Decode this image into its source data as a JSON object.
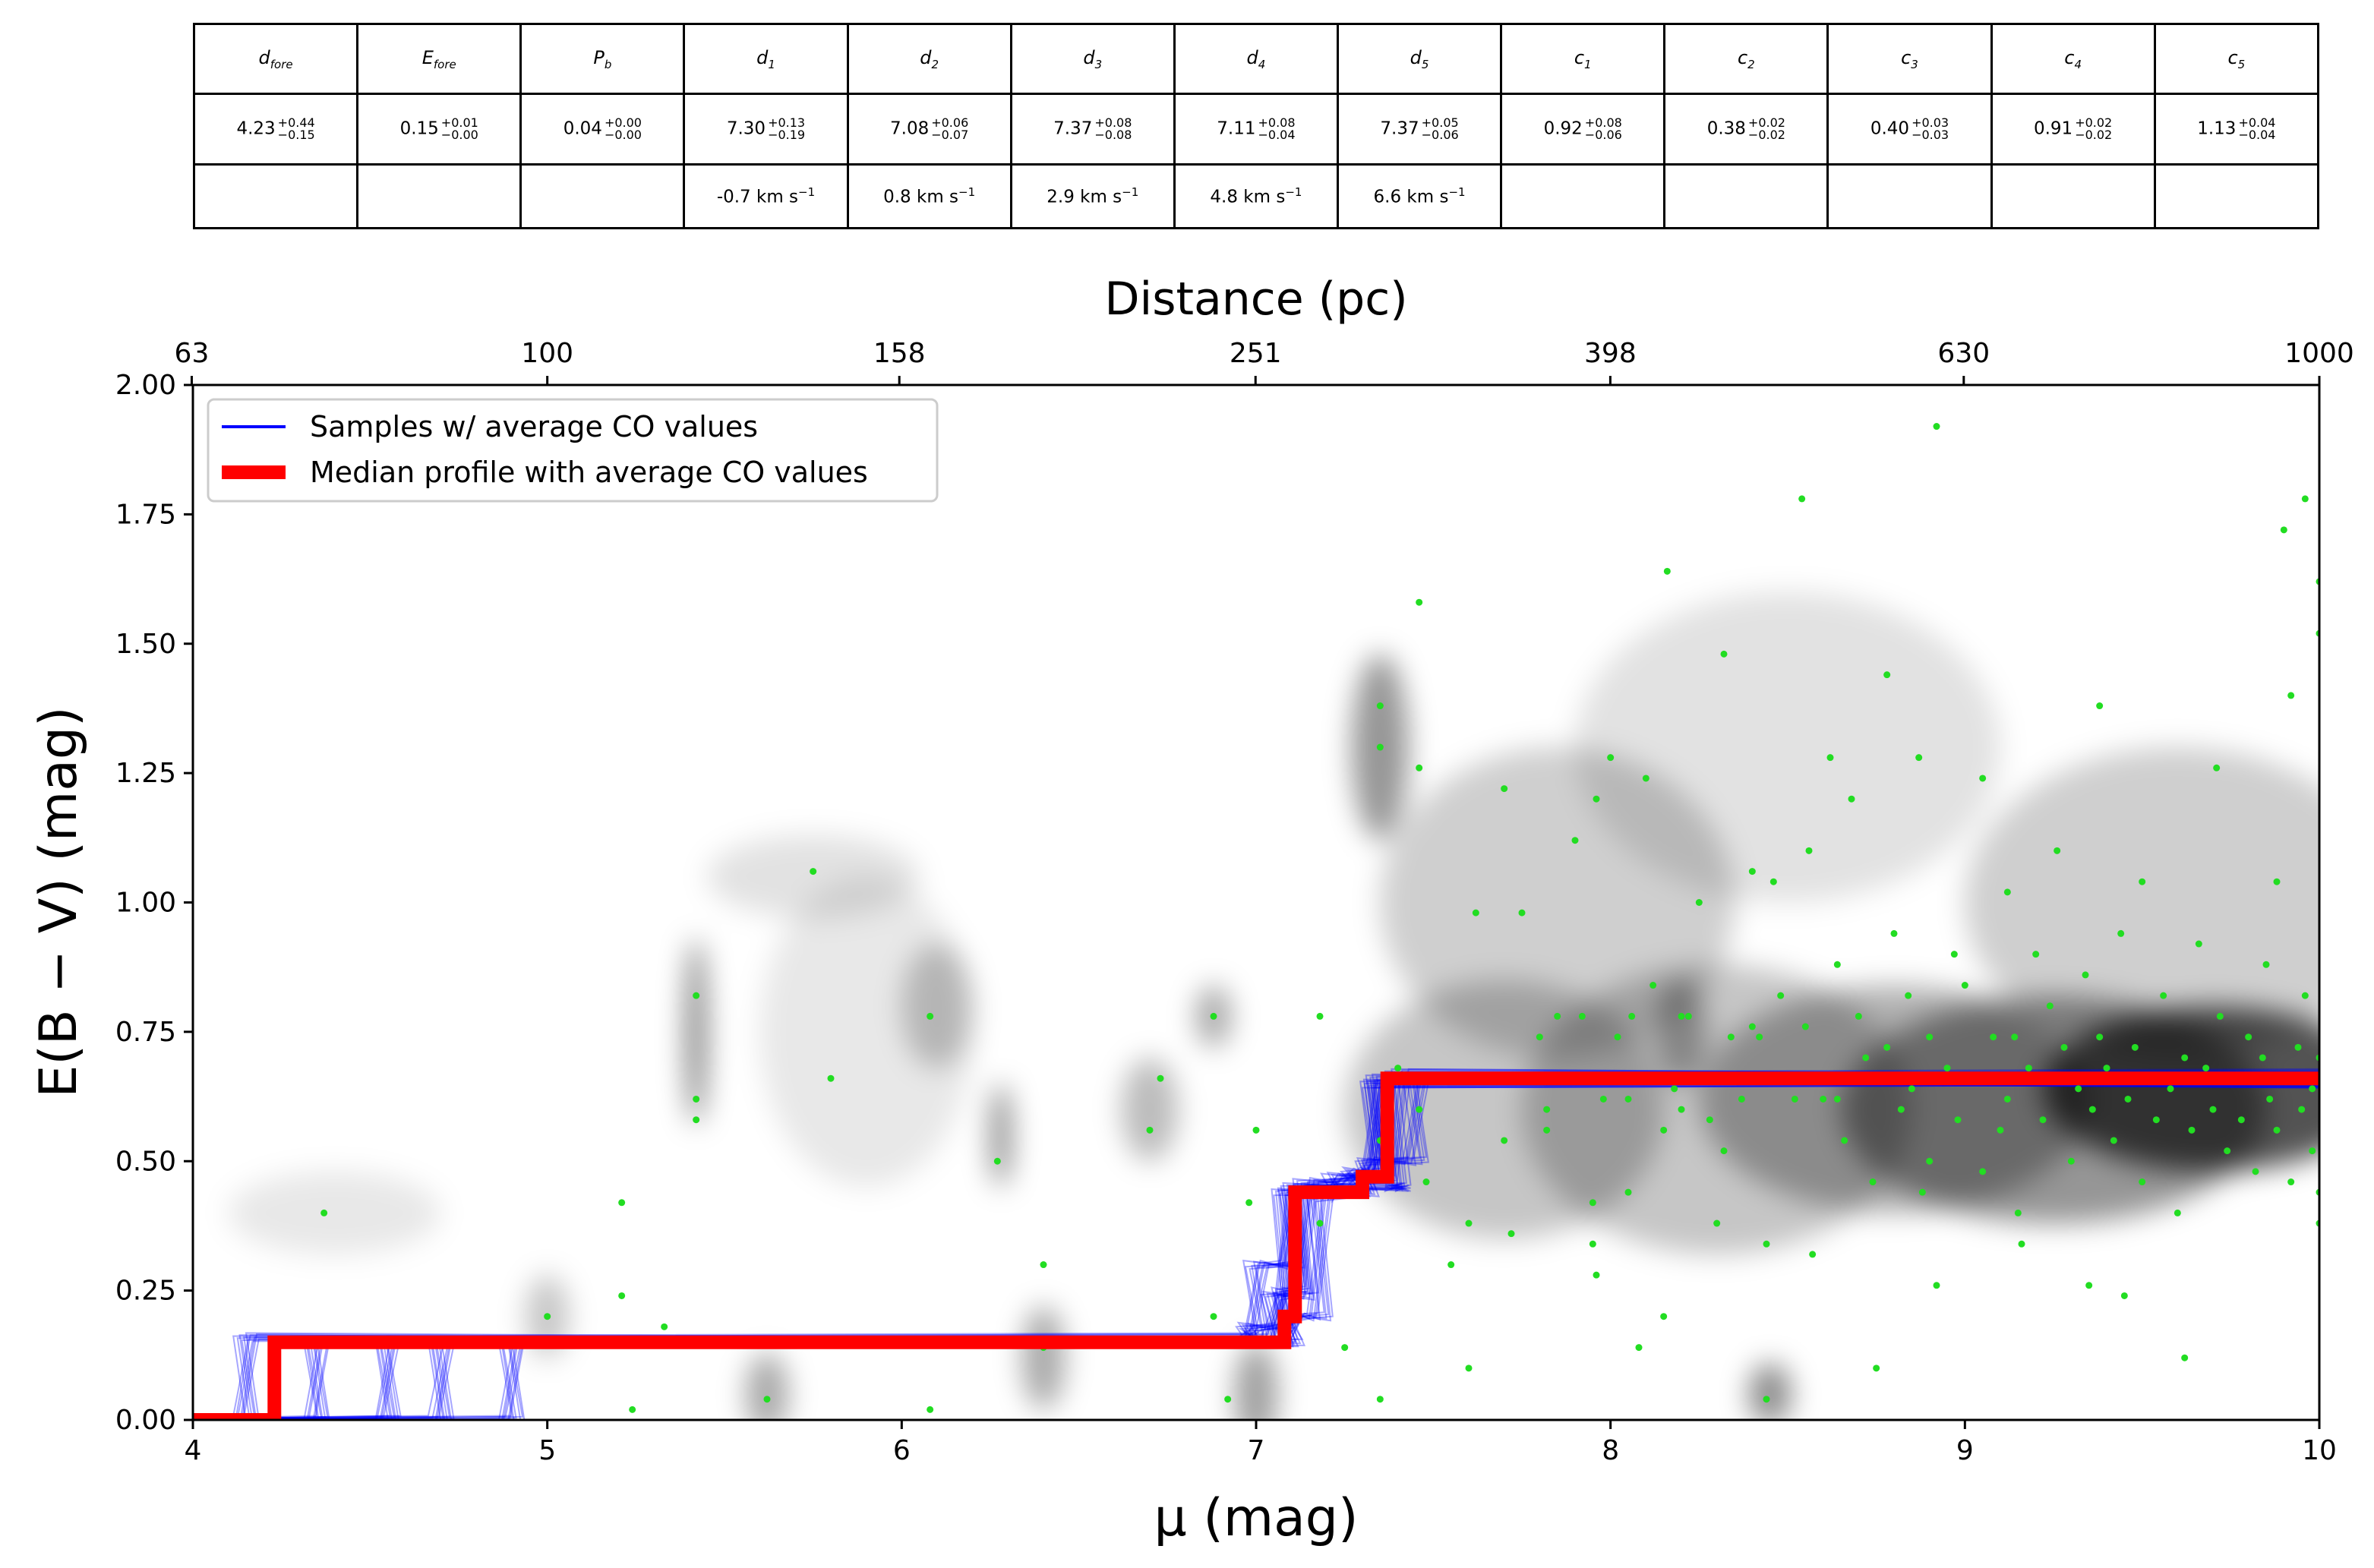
{
  "table": {
    "headers": [
      {
        "base": "d",
        "sub": "fore"
      },
      {
        "base": "E",
        "sub": "fore"
      },
      {
        "base": "P",
        "sub": "b"
      },
      {
        "base": "d",
        "sub": "1"
      },
      {
        "base": "d",
        "sub": "2"
      },
      {
        "base": "d",
        "sub": "3"
      },
      {
        "base": "d",
        "sub": "4"
      },
      {
        "base": "d",
        "sub": "5"
      },
      {
        "base": "c",
        "sub": "1"
      },
      {
        "base": "c",
        "sub": "2"
      },
      {
        "base": "c",
        "sub": "3"
      },
      {
        "base": "c",
        "sub": "4"
      },
      {
        "base": "c",
        "sub": "5"
      }
    ],
    "values": [
      {
        "v": "4.23",
        "up": "+0.44",
        "down": "−0.15"
      },
      {
        "v": "0.15",
        "up": "+0.01",
        "down": "−0.00"
      },
      {
        "v": "0.04",
        "up": "+0.00",
        "down": "−0.00"
      },
      {
        "v": "7.30",
        "up": "+0.13",
        "down": "−0.19"
      },
      {
        "v": "7.08",
        "up": "+0.06",
        "down": "−0.07"
      },
      {
        "v": "7.37",
        "up": "+0.08",
        "down": "−0.08"
      },
      {
        "v": "7.11",
        "up": "+0.08",
        "down": "−0.04"
      },
      {
        "v": "7.37",
        "up": "+0.05",
        "down": "−0.06"
      },
      {
        "v": "0.92",
        "up": "+0.08",
        "down": "−0.06"
      },
      {
        "v": "0.38",
        "up": "+0.02",
        "down": "−0.02"
      },
      {
        "v": "0.40",
        "up": "+0.03",
        "down": "−0.03"
      },
      {
        "v": "0.91",
        "up": "+0.02",
        "down": "−0.02"
      },
      {
        "v": "1.13",
        "up": "+0.04",
        "down": "−0.04"
      }
    ],
    "velocities": [
      "",
      "",
      "",
      "-0.7 km s",
      "0.8 km s",
      "2.9 km s",
      "4.8 km s",
      "6.6 km s",
      "",
      "",
      "",
      "",
      ""
    ],
    "velocity_unit_sup": "−1"
  },
  "chart_data": {
    "type": "line",
    "xlabel": "μ (mag)",
    "ylabel": "E(B − V) (mag)",
    "top_xlabel": "Distance (pc)",
    "xlim": [
      4,
      10
    ],
    "ylim": [
      0,
      2
    ],
    "x_ticks": [
      "4",
      "5",
      "6",
      "7",
      "8",
      "9",
      "10"
    ],
    "y_ticks": [
      "0.00",
      "0.25",
      "0.50",
      "0.75",
      "1.00",
      "1.25",
      "1.50",
      "1.75",
      "2.00"
    ],
    "top_ticks": [
      "63",
      "100",
      "158",
      "251",
      "398",
      "630",
      "1000"
    ],
    "legend": {
      "position": "upper-left",
      "entries": [
        "Samples  w/ average CO values",
        "Median profile with average CO values"
      ]
    },
    "colors": {
      "samples": "#0000ff",
      "median": "#ff0000",
      "stars": "#22dd22"
    },
    "series": [
      {
        "name": "Median profile with average CO values",
        "x": [
          4.0,
          4.23,
          4.23,
          7.08,
          7.08,
          7.11,
          7.11,
          7.3,
          7.3,
          7.37,
          7.37,
          10.0
        ],
        "y": [
          0.0,
          0.0,
          0.15,
          0.15,
          0.2,
          0.2,
          0.44,
          0.44,
          0.47,
          0.47,
          0.66,
          0.66
        ]
      }
    ],
    "samples_sketch": [
      {
        "x": [
          4.0,
          4.9,
          4.9,
          7.05,
          7.05,
          7.14,
          7.14,
          7.27,
          7.27,
          7.34,
          7.34,
          10.0
        ],
        "y": [
          0.0,
          0.0,
          0.15,
          0.15,
          0.24,
          0.24,
          0.46,
          0.46,
          0.48,
          0.48,
          0.66,
          0.66
        ]
      },
      {
        "x": [
          4.0,
          4.15,
          4.15,
          7.0,
          7.0,
          7.1,
          7.1,
          7.4,
          7.4,
          7.4,
          7.4,
          10.0
        ],
        "y": [
          0.0,
          0.0,
          0.16,
          0.16,
          0.3,
          0.3,
          0.45,
          0.45,
          0.45,
          0.45,
          0.67,
          0.67
        ]
      },
      {
        "x": [
          4.0,
          4.55,
          4.55,
          7.1,
          7.1,
          7.18,
          7.18,
          7.22,
          7.22,
          7.36,
          7.36,
          10.0
        ],
        "y": [
          0.0,
          0.0,
          0.15,
          0.15,
          0.2,
          0.2,
          0.43,
          0.43,
          0.47,
          0.47,
          0.65,
          0.65
        ]
      },
      {
        "x": [
          4.0,
          4.35,
          4.35,
          6.98,
          6.98,
          7.08,
          7.08,
          7.31,
          7.31,
          7.45,
          7.45,
          10.0
        ],
        "y": [
          0.0,
          0.0,
          0.15,
          0.15,
          0.18,
          0.18,
          0.44,
          0.44,
          0.5,
          0.5,
          0.66,
          0.66
        ]
      },
      {
        "x": [
          4.0,
          4.7,
          4.7,
          7.08,
          7.08,
          7.12,
          7.12,
          7.29,
          7.29,
          7.33,
          7.33,
          10.0
        ],
        "y": [
          0.0,
          0.0,
          0.15,
          0.15,
          0.25,
          0.25,
          0.44,
          0.44,
          0.47,
          0.47,
          0.65,
          0.65
        ]
      }
    ],
    "stars": [
      [
        4.37,
        0.4
      ],
      [
        5.21,
        0.42
      ],
      [
        5.21,
        0.24
      ],
      [
        5.0,
        0.2
      ],
      [
        5.33,
        0.18
      ],
      [
        5.24,
        0.02
      ],
      [
        5.42,
        0.82
      ],
      [
        5.42,
        0.62
      ],
      [
        5.42,
        0.58
      ],
      [
        5.62,
        0.04
      ],
      [
        5.75,
        1.06
      ],
      [
        5.8,
        0.66
      ],
      [
        6.08,
        0.78
      ],
      [
        6.08,
        0.02
      ],
      [
        6.27,
        0.5
      ],
      [
        6.4,
        0.3
      ],
      [
        6.4,
        0.14
      ],
      [
        6.7,
        0.56
      ],
      [
        6.73,
        0.66
      ],
      [
        6.88,
        0.78
      ],
      [
        6.88,
        0.2
      ],
      [
        6.92,
        0.04
      ],
      [
        6.98,
        0.42
      ],
      [
        7.0,
        0.56
      ],
      [
        7.18,
        0.78
      ],
      [
        7.18,
        0.38
      ],
      [
        7.25,
        0.14
      ],
      [
        7.35,
        1.38
      ],
      [
        7.35,
        1.3
      ],
      [
        7.35,
        0.54
      ],
      [
        7.35,
        0.04
      ],
      [
        7.4,
        0.68
      ],
      [
        7.46,
        1.58
      ],
      [
        7.46,
        1.26
      ],
      [
        7.46,
        0.6
      ],
      [
        7.48,
        0.46
      ],
      [
        7.55,
        0.3
      ],
      [
        7.6,
        0.38
      ],
      [
        7.6,
        0.1
      ],
      [
        7.62,
        0.98
      ],
      [
        7.7,
        1.22
      ],
      [
        7.7,
        0.54
      ],
      [
        7.72,
        0.36
      ],
      [
        7.75,
        0.98
      ],
      [
        7.8,
        0.74
      ],
      [
        7.82,
        0.6
      ],
      [
        7.82,
        0.56
      ],
      [
        7.85,
        0.78
      ],
      [
        7.9,
        1.12
      ],
      [
        7.92,
        0.78
      ],
      [
        7.95,
        0.42
      ],
      [
        7.95,
        0.34
      ],
      [
        7.96,
        1.2
      ],
      [
        7.96,
        0.28
      ],
      [
        7.98,
        0.62
      ],
      [
        8.0,
        1.28
      ],
      [
        8.02,
        0.74
      ],
      [
        8.05,
        0.62
      ],
      [
        8.05,
        0.44
      ],
      [
        8.06,
        0.78
      ],
      [
        8.08,
        0.14
      ],
      [
        8.1,
        1.24
      ],
      [
        8.12,
        0.84
      ],
      [
        8.15,
        0.56
      ],
      [
        8.15,
        0.2
      ],
      [
        8.16,
        1.64
      ],
      [
        8.18,
        0.64
      ],
      [
        8.2,
        0.78
      ],
      [
        8.2,
        0.6
      ],
      [
        8.22,
        0.78
      ],
      [
        8.25,
        1.0
      ],
      [
        8.28,
        0.58
      ],
      [
        8.3,
        0.38
      ],
      [
        8.32,
        1.48
      ],
      [
        8.32,
        0.52
      ],
      [
        8.34,
        0.74
      ],
      [
        8.37,
        0.62
      ],
      [
        8.4,
        1.06
      ],
      [
        8.4,
        0.76
      ],
      [
        8.42,
        0.74
      ],
      [
        8.44,
        0.34
      ],
      [
        8.44,
        0.04
      ],
      [
        8.46,
        1.04
      ],
      [
        8.48,
        0.82
      ],
      [
        8.5,
        0.66
      ],
      [
        8.52,
        0.62
      ],
      [
        8.54,
        1.78
      ],
      [
        8.55,
        0.76
      ],
      [
        8.56,
        1.1
      ],
      [
        8.57,
        0.32
      ],
      [
        8.6,
        0.62
      ],
      [
        8.62,
        1.28
      ],
      [
        8.64,
        0.88
      ],
      [
        8.64,
        0.62
      ],
      [
        8.66,
        0.54
      ],
      [
        8.68,
        1.2
      ],
      [
        8.7,
        0.78
      ],
      [
        8.72,
        0.7
      ],
      [
        8.74,
        0.46
      ],
      [
        8.75,
        0.1
      ],
      [
        8.78,
        1.44
      ],
      [
        8.78,
        0.72
      ],
      [
        8.8,
        0.94
      ],
      [
        8.82,
        0.6
      ],
      [
        8.84,
        0.82
      ],
      [
        8.85,
        0.64
      ],
      [
        8.87,
        1.28
      ],
      [
        8.88,
        0.44
      ],
      [
        8.9,
        0.74
      ],
      [
        8.9,
        0.5
      ],
      [
        8.92,
        1.92
      ],
      [
        8.92,
        0.26
      ],
      [
        8.95,
        0.68
      ],
      [
        8.97,
        0.9
      ],
      [
        8.98,
        0.58
      ],
      [
        9.0,
        0.84
      ],
      [
        9.02,
        0.66
      ],
      [
        9.05,
        1.24
      ],
      [
        9.05,
        0.48
      ],
      [
        9.08,
        0.74
      ],
      [
        9.1,
        0.56
      ],
      [
        9.12,
        1.02
      ],
      [
        9.12,
        0.62
      ],
      [
        9.14,
        0.74
      ],
      [
        9.15,
        0.4
      ],
      [
        9.16,
        0.34
      ],
      [
        9.18,
        0.68
      ],
      [
        9.2,
        0.9
      ],
      [
        9.22,
        0.58
      ],
      [
        9.24,
        0.8
      ],
      [
        9.25,
        0.66
      ],
      [
        9.26,
        1.1
      ],
      [
        9.28,
        0.72
      ],
      [
        9.3,
        0.5
      ],
      [
        9.32,
        0.64
      ],
      [
        9.34,
        0.86
      ],
      [
        9.35,
        0.26
      ],
      [
        9.36,
        0.6
      ],
      [
        9.38,
        0.74
      ],
      [
        9.38,
        1.38
      ],
      [
        9.4,
        0.68
      ],
      [
        9.42,
        0.54
      ],
      [
        9.44,
        0.94
      ],
      [
        9.45,
        0.24
      ],
      [
        9.46,
        0.62
      ],
      [
        9.48,
        0.72
      ],
      [
        9.5,
        1.04
      ],
      [
        9.5,
        0.46
      ],
      [
        9.52,
        0.66
      ],
      [
        9.54,
        0.58
      ],
      [
        9.56,
        0.82
      ],
      [
        9.58,
        0.64
      ],
      [
        9.6,
        0.4
      ],
      [
        9.62,
        0.7
      ],
      [
        9.62,
        0.12
      ],
      [
        9.64,
        0.56
      ],
      [
        9.66,
        0.92
      ],
      [
        9.68,
        0.68
      ],
      [
        9.7,
        0.6
      ],
      [
        9.71,
        1.26
      ],
      [
        9.72,
        0.78
      ],
      [
        9.74,
        0.52
      ],
      [
        9.76,
        0.66
      ],
      [
        9.78,
        0.58
      ],
      [
        9.8,
        0.74
      ],
      [
        9.82,
        0.48
      ],
      [
        9.84,
        0.7
      ],
      [
        9.85,
        0.88
      ],
      [
        9.86,
        0.62
      ],
      [
        9.88,
        1.04
      ],
      [
        9.88,
        0.56
      ],
      [
        9.9,
        0.66
      ],
      [
        9.9,
        1.72
      ],
      [
        9.92,
        0.46
      ],
      [
        9.92,
        1.4
      ],
      [
        9.94,
        0.72
      ],
      [
        9.95,
        0.6
      ],
      [
        9.96,
        0.82
      ],
      [
        9.96,
        1.78
      ],
      [
        9.98,
        0.52
      ],
      [
        9.98,
        0.64
      ],
      [
        10.0,
        0.7
      ],
      [
        10.0,
        1.52
      ],
      [
        10.0,
        1.62
      ],
      [
        10.0,
        0.44
      ],
      [
        10.0,
        0.38
      ]
    ],
    "density_blobs": [
      [
        9.7,
        0.64,
        0.48,
        0.16,
        0.9
      ],
      [
        9.25,
        0.6,
        0.6,
        0.22,
        0.55
      ],
      [
        8.8,
        0.62,
        0.55,
        0.22,
        0.4
      ],
      [
        8.3,
        0.6,
        0.55,
        0.28,
        0.3
      ],
      [
        9.6,
        1.0,
        0.6,
        0.3,
        0.25
      ],
      [
        8.5,
        1.3,
        0.6,
        0.3,
        0.15
      ],
      [
        7.85,
        1.0,
        0.5,
        0.3,
        0.25
      ],
      [
        7.7,
        0.6,
        0.45,
        0.25,
        0.3
      ],
      [
        7.35,
        1.3,
        0.08,
        0.18,
        0.55
      ],
      [
        8.2,
        0.75,
        0.07,
        0.1,
        0.45
      ],
      [
        8.45,
        0.05,
        0.06,
        0.06,
        0.6
      ],
      [
        7.0,
        0.05,
        0.06,
        0.1,
        0.5
      ],
      [
        6.88,
        0.78,
        0.05,
        0.06,
        0.45
      ],
      [
        6.4,
        0.12,
        0.06,
        0.1,
        0.45
      ],
      [
        6.28,
        0.55,
        0.03,
        0.1,
        0.6
      ],
      [
        6.7,
        0.6,
        0.08,
        0.1,
        0.35
      ],
      [
        5.42,
        0.75,
        0.03,
        0.18,
        0.65
      ],
      [
        5.62,
        0.05,
        0.06,
        0.08,
        0.45
      ],
      [
        5.0,
        0.2,
        0.06,
        0.08,
        0.3
      ],
      [
        6.1,
        0.8,
        0.1,
        0.12,
        0.3
      ],
      [
        5.75,
        1.05,
        0.3,
        0.08,
        0.15
      ],
      [
        5.9,
        0.75,
        0.3,
        0.3,
        0.12
      ],
      [
        4.4,
        0.4,
        0.3,
        0.08,
        0.12
      ]
    ]
  }
}
